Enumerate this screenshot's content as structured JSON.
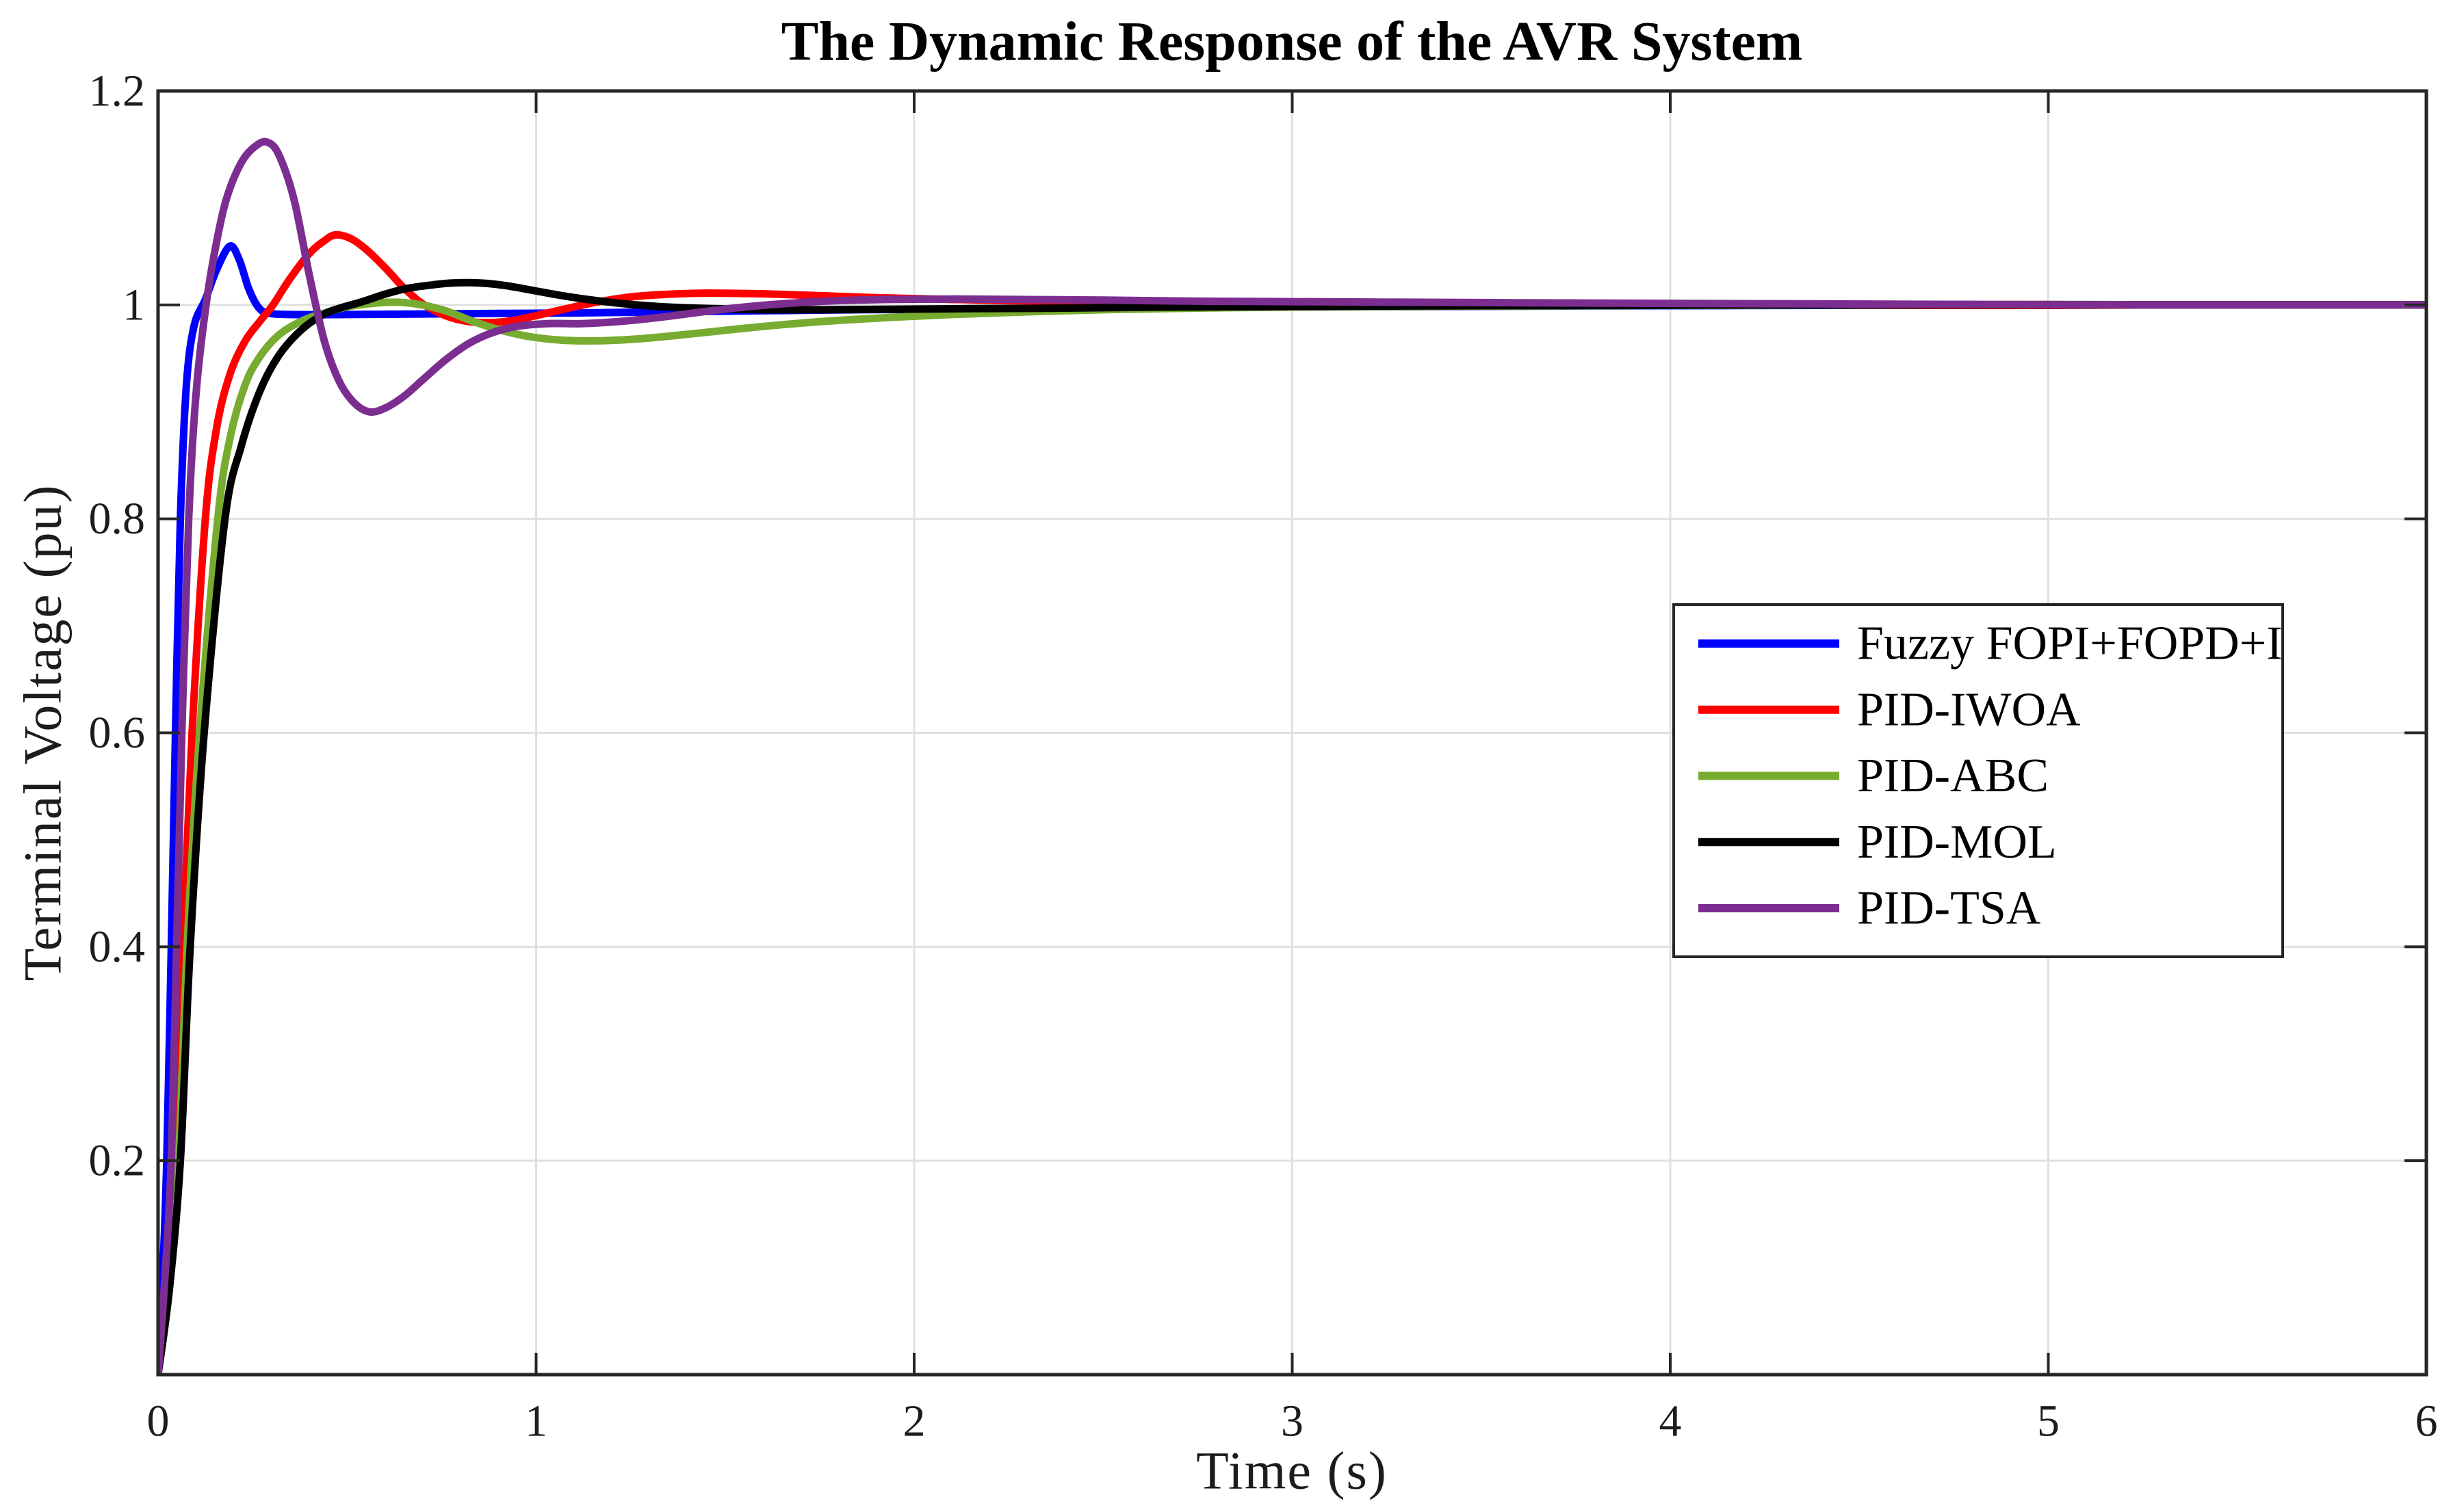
{
  "chart_data": {
    "type": "line",
    "title": "The Dynamic Response of the AVR System",
    "xlabel": "Time (s)",
    "ylabel": "Terminal Voltage (pu)",
    "xlim": [
      0,
      6
    ],
    "ylim": [
      0,
      1.2
    ],
    "grid": true,
    "legend_position": "inside-middle-right",
    "colors": {
      "background": "#ffffff",
      "axis": "#262626",
      "grid": "#e0e0e0",
      "tick_text": "#1c1c1c"
    },
    "xticks": [
      {
        "value": 0,
        "label": "0"
      },
      {
        "value": 1,
        "label": "1"
      },
      {
        "value": 2,
        "label": "2"
      },
      {
        "value": 3,
        "label": "3"
      },
      {
        "value": 4,
        "label": "4"
      },
      {
        "value": 5,
        "label": "5"
      },
      {
        "value": 6,
        "label": "6"
      }
    ],
    "yticks": [
      {
        "value": 0.2,
        "label": "0.2"
      },
      {
        "value": 0.4,
        "label": "0.4"
      },
      {
        "value": 0.6,
        "label": "0.6"
      },
      {
        "value": 0.8,
        "label": "0.8"
      },
      {
        "value": 1.0,
        "label": "1"
      },
      {
        "value": 1.2,
        "label": "1.2"
      }
    ],
    "series": [
      {
        "name": "Fuzzy FOPI+FOPD+I",
        "color": "#0000ff",
        "overshoot_peak": {
          "t": 0.19,
          "v": 1.055
        },
        "points": [
          [
            0,
            0
          ],
          [
            0.012,
            0.09
          ],
          [
            0.023,
            0.2
          ],
          [
            0.035,
            0.4
          ],
          [
            0.046,
            0.6
          ],
          [
            0.059,
            0.8
          ],
          [
            0.075,
            0.925
          ],
          [
            0.095,
            0.98
          ],
          [
            0.125,
            1.005
          ],
          [
            0.155,
            1.033
          ],
          [
            0.19,
            1.055
          ],
          [
            0.215,
            1.042
          ],
          [
            0.24,
            1.015
          ],
          [
            0.265,
            0.998
          ],
          [
            0.29,
            0.9925
          ],
          [
            0.35,
            0.991
          ],
          [
            0.5,
            0.991
          ],
          [
            0.7,
            0.9915
          ],
          [
            0.9,
            0.992
          ],
          [
            1.1,
            0.9925
          ],
          [
            1.35,
            0.9935
          ],
          [
            1.6,
            0.9945
          ],
          [
            1.85,
            0.9955
          ],
          [
            2.1,
            0.996
          ],
          [
            2.4,
            0.997
          ],
          [
            2.7,
            0.9975
          ],
          [
            3,
            0.998
          ],
          [
            3.4,
            0.9985
          ],
          [
            3.8,
            0.999
          ],
          [
            4.3,
            0.9995
          ],
          [
            4.9,
            1
          ],
          [
            6,
            1
          ]
        ]
      },
      {
        "name": "PID-IWOA",
        "color": "#ff0000",
        "overshoot_peak": {
          "t": 0.47,
          "v": 1.066
        },
        "points": [
          [
            0,
            0
          ],
          [
            0.022,
            0.08
          ],
          [
            0.046,
            0.2
          ],
          [
            0.065,
            0.4
          ],
          [
            0.09,
            0.6
          ],
          [
            0.125,
            0.8
          ],
          [
            0.155,
            0.885
          ],
          [
            0.19,
            0.935
          ],
          [
            0.23,
            0.966
          ],
          [
            0.27,
            0.985
          ],
          [
            0.304,
            1
          ],
          [
            0.35,
            1.025
          ],
          [
            0.4,
            1.048
          ],
          [
            0.44,
            1.06
          ],
          [
            0.47,
            1.0655
          ],
          [
            0.51,
            1.062
          ],
          [
            0.55,
            1.052
          ],
          [
            0.6,
            1.035
          ],
          [
            0.65,
            1.016
          ],
          [
            0.7,
            1.001
          ],
          [
            0.76,
            0.99
          ],
          [
            0.82,
            0.9845
          ],
          [
            0.88,
            0.9835
          ],
          [
            0.94,
            0.9855
          ],
          [
            1,
            0.99
          ],
          [
            1.08,
            0.9965
          ],
          [
            1.16,
            1.0025
          ],
          [
            1.25,
            1.0075
          ],
          [
            1.35,
            1.01
          ],
          [
            1.45,
            1.011
          ],
          [
            1.58,
            1.0105
          ],
          [
            1.72,
            1.009
          ],
          [
            1.88,
            1.007
          ],
          [
            2.05,
            1.0055
          ],
          [
            2.25,
            1.004
          ],
          [
            2.5,
            1.003
          ],
          [
            2.75,
            1.002
          ],
          [
            3.05,
            1.0015
          ],
          [
            3.4,
            1.001
          ],
          [
            3.8,
            1.0005
          ],
          [
            4.3,
            1
          ],
          [
            4.9,
            0.9995
          ],
          [
            5.3,
            1
          ],
          [
            6,
            1
          ]
        ]
      },
      {
        "name": "PID-ABC",
        "color": "#77ac30",
        "overshoot_peak": {
          "t": 0.63,
          "v": 1.0025
        },
        "points": [
          [
            0,
            0
          ],
          [
            0.027,
            0.08
          ],
          [
            0.054,
            0.2
          ],
          [
            0.077,
            0.4
          ],
          [
            0.11,
            0.6
          ],
          [
            0.158,
            0.8
          ],
          [
            0.19,
            0.875
          ],
          [
            0.23,
            0.925
          ],
          [
            0.27,
            0.952
          ],
          [
            0.32,
            0.972
          ],
          [
            0.38,
            0.985
          ],
          [
            0.44,
            0.9925
          ],
          [
            0.505,
            0.9985
          ],
          [
            0.57,
            1.0015
          ],
          [
            0.63,
            1.0025
          ],
          [
            0.69,
            1.0005
          ],
          [
            0.76,
            0.9945
          ],
          [
            0.83,
            0.985
          ],
          [
            0.9,
            0.977
          ],
          [
            0.98,
            0.9705
          ],
          [
            1.07,
            0.967
          ],
          [
            1.17,
            0.9665
          ],
          [
            1.28,
            0.9685
          ],
          [
            1.4,
            0.9725
          ],
          [
            1.52,
            0.977
          ],
          [
            1.65,
            0.9815
          ],
          [
            1.8,
            0.9855
          ],
          [
            1.95,
            0.9885
          ],
          [
            2.1,
            0.991
          ],
          [
            2.3,
            0.9935
          ],
          [
            2.5,
            0.9955
          ],
          [
            2.75,
            0.997
          ],
          [
            3,
            0.998
          ],
          [
            3.3,
            0.9985
          ],
          [
            3.6,
            0.999
          ],
          [
            4,
            0.9995
          ],
          [
            4.5,
            1
          ],
          [
            5,
            1.0005
          ],
          [
            5.4,
            1
          ],
          [
            6,
            1
          ]
        ]
      },
      {
        "name": "PID-MOL",
        "color": "#000000",
        "overshoot_peak": {
          "t": 0.8,
          "v": 1.02
        },
        "points": [
          [
            0,
            0
          ],
          [
            0.03,
            0.08
          ],
          [
            0.059,
            0.2
          ],
          [
            0.085,
            0.4
          ],
          [
            0.122,
            0.6
          ],
          [
            0.177,
            0.8
          ],
          [
            0.22,
            0.868
          ],
          [
            0.27,
            0.92
          ],
          [
            0.32,
            0.953
          ],
          [
            0.38,
            0.977
          ],
          [
            0.44,
            0.9915
          ],
          [
            0.49,
            0.998
          ],
          [
            0.54,
            1.003
          ],
          [
            0.6,
            1.01
          ],
          [
            0.66,
            1.0155
          ],
          [
            0.72,
            1.0185
          ],
          [
            0.78,
            1.0205
          ],
          [
            0.85,
            1.0205
          ],
          [
            0.92,
            1.018
          ],
          [
            1,
            1.013
          ],
          [
            1.08,
            1.008
          ],
          [
            1.16,
            1.004
          ],
          [
            1.25,
            1.0005
          ],
          [
            1.35,
            0.998
          ],
          [
            1.47,
            0.9965
          ],
          [
            1.6,
            0.9955
          ],
          [
            1.75,
            0.9955
          ],
          [
            1.95,
            0.996
          ],
          [
            2.15,
            0.9965
          ],
          [
            2.4,
            0.997
          ],
          [
            2.65,
            0.998
          ],
          [
            2.95,
            0.9985
          ],
          [
            3.3,
            0.999
          ],
          [
            3.7,
            0.9995
          ],
          [
            4.2,
            1
          ],
          [
            5,
            1
          ],
          [
            6,
            1
          ]
        ]
      },
      {
        "name": "PID-TSA",
        "color": "#7c2e90",
        "overshoot_peak": {
          "t": 0.29,
          "v": 1.152
        },
        "points": [
          [
            0,
            0
          ],
          [
            0.018,
            0.09
          ],
          [
            0.035,
            0.2
          ],
          [
            0.049,
            0.4
          ],
          [
            0.063,
            0.6
          ],
          [
            0.081,
            0.8
          ],
          [
            0.1,
            0.915
          ],
          [
            0.125,
            0.995
          ],
          [
            0.15,
            1.05
          ],
          [
            0.18,
            1.098
          ],
          [
            0.22,
            1.133
          ],
          [
            0.26,
            1.149
          ],
          [
            0.29,
            1.152
          ],
          [
            0.32,
            1.14
          ],
          [
            0.36,
            1.098
          ],
          [
            0.4,
            1.028
          ],
          [
            0.44,
            0.966
          ],
          [
            0.48,
            0.928
          ],
          [
            0.52,
            0.908
          ],
          [
            0.56,
            0.9
          ],
          [
            0.6,
            0.9035
          ],
          [
            0.65,
            0.9145
          ],
          [
            0.7,
            0.93
          ],
          [
            0.76,
            0.9485
          ],
          [
            0.82,
            0.9635
          ],
          [
            0.88,
            0.9735
          ],
          [
            0.95,
            0.98
          ],
          [
            1.03,
            0.9825
          ],
          [
            1.12,
            0.9825
          ],
          [
            1.22,
            0.9845
          ],
          [
            1.33,
            0.9885
          ],
          [
            1.44,
            0.9935
          ],
          [
            1.55,
            0.998
          ],
          [
            1.67,
            1.0015
          ],
          [
            1.8,
            1.004
          ],
          [
            1.95,
            1.0052
          ],
          [
            2.12,
            1.0055
          ],
          [
            2.3,
            1.005
          ],
          [
            2.5,
            1.0045
          ],
          [
            2.75,
            1.0035
          ],
          [
            3,
            1.003
          ],
          [
            3.3,
            1.0025
          ],
          [
            3.6,
            1.002
          ],
          [
            3.95,
            1.0015
          ],
          [
            4.35,
            1.001
          ],
          [
            4.8,
            1.0005
          ],
          [
            5.3,
            1
          ],
          [
            6,
            1
          ]
        ]
      }
    ]
  }
}
